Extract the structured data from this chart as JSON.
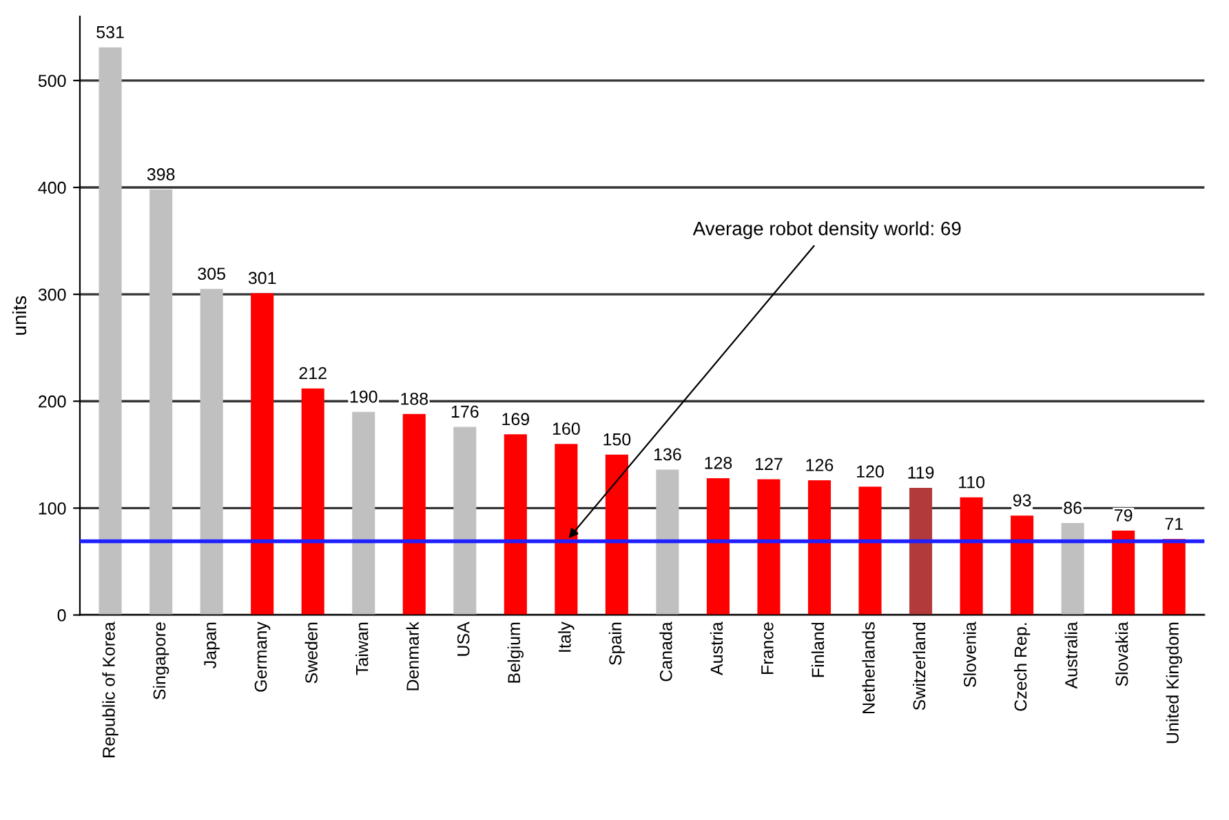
{
  "chart_data": {
    "type": "bar",
    "ylabel": "units",
    "categories": [
      "Republic of Korea",
      "Singapore",
      "Japan",
      "Germany",
      "Sweden",
      "Taiwan",
      "Denmark",
      "USA",
      "Belgium",
      "Italy",
      "Spain",
      "Canada",
      "Austria",
      "France",
      "Finland",
      "Netherlands",
      "Switzerland",
      "Slovenia",
      "Czech Rep.",
      "Australia",
      "Slovakia",
      "United Kingdom"
    ],
    "values": [
      531,
      398,
      305,
      301,
      212,
      190,
      188,
      176,
      169,
      160,
      150,
      136,
      128,
      127,
      126,
      120,
      119,
      110,
      93,
      86,
      79,
      71
    ],
    "colors": [
      "#c0c0c0",
      "#c0c0c0",
      "#c0c0c0",
      "#ff0000",
      "#ff0000",
      "#c0c0c0",
      "#ff0000",
      "#c0c0c0",
      "#ff0000",
      "#ff0000",
      "#ff0000",
      "#c0c0c0",
      "#ff0000",
      "#ff0000",
      "#ff0000",
      "#ff0000",
      "#b23a3a",
      "#ff0000",
      "#ff0000",
      "#c0c0c0",
      "#ff0000",
      "#ff0000"
    ],
    "data_labels": true,
    "ylim": [
      0,
      560
    ],
    "yticks": [
      0,
      100,
      200,
      300,
      400,
      500
    ],
    "grid": "y",
    "ref_lines": [
      {
        "axis": "y",
        "value": 69,
        "color": "#2020ff"
      }
    ],
    "annotations": [
      {
        "text": "Average robot density world: 69",
        "x": "Italy",
        "y": 69
      }
    ]
  }
}
